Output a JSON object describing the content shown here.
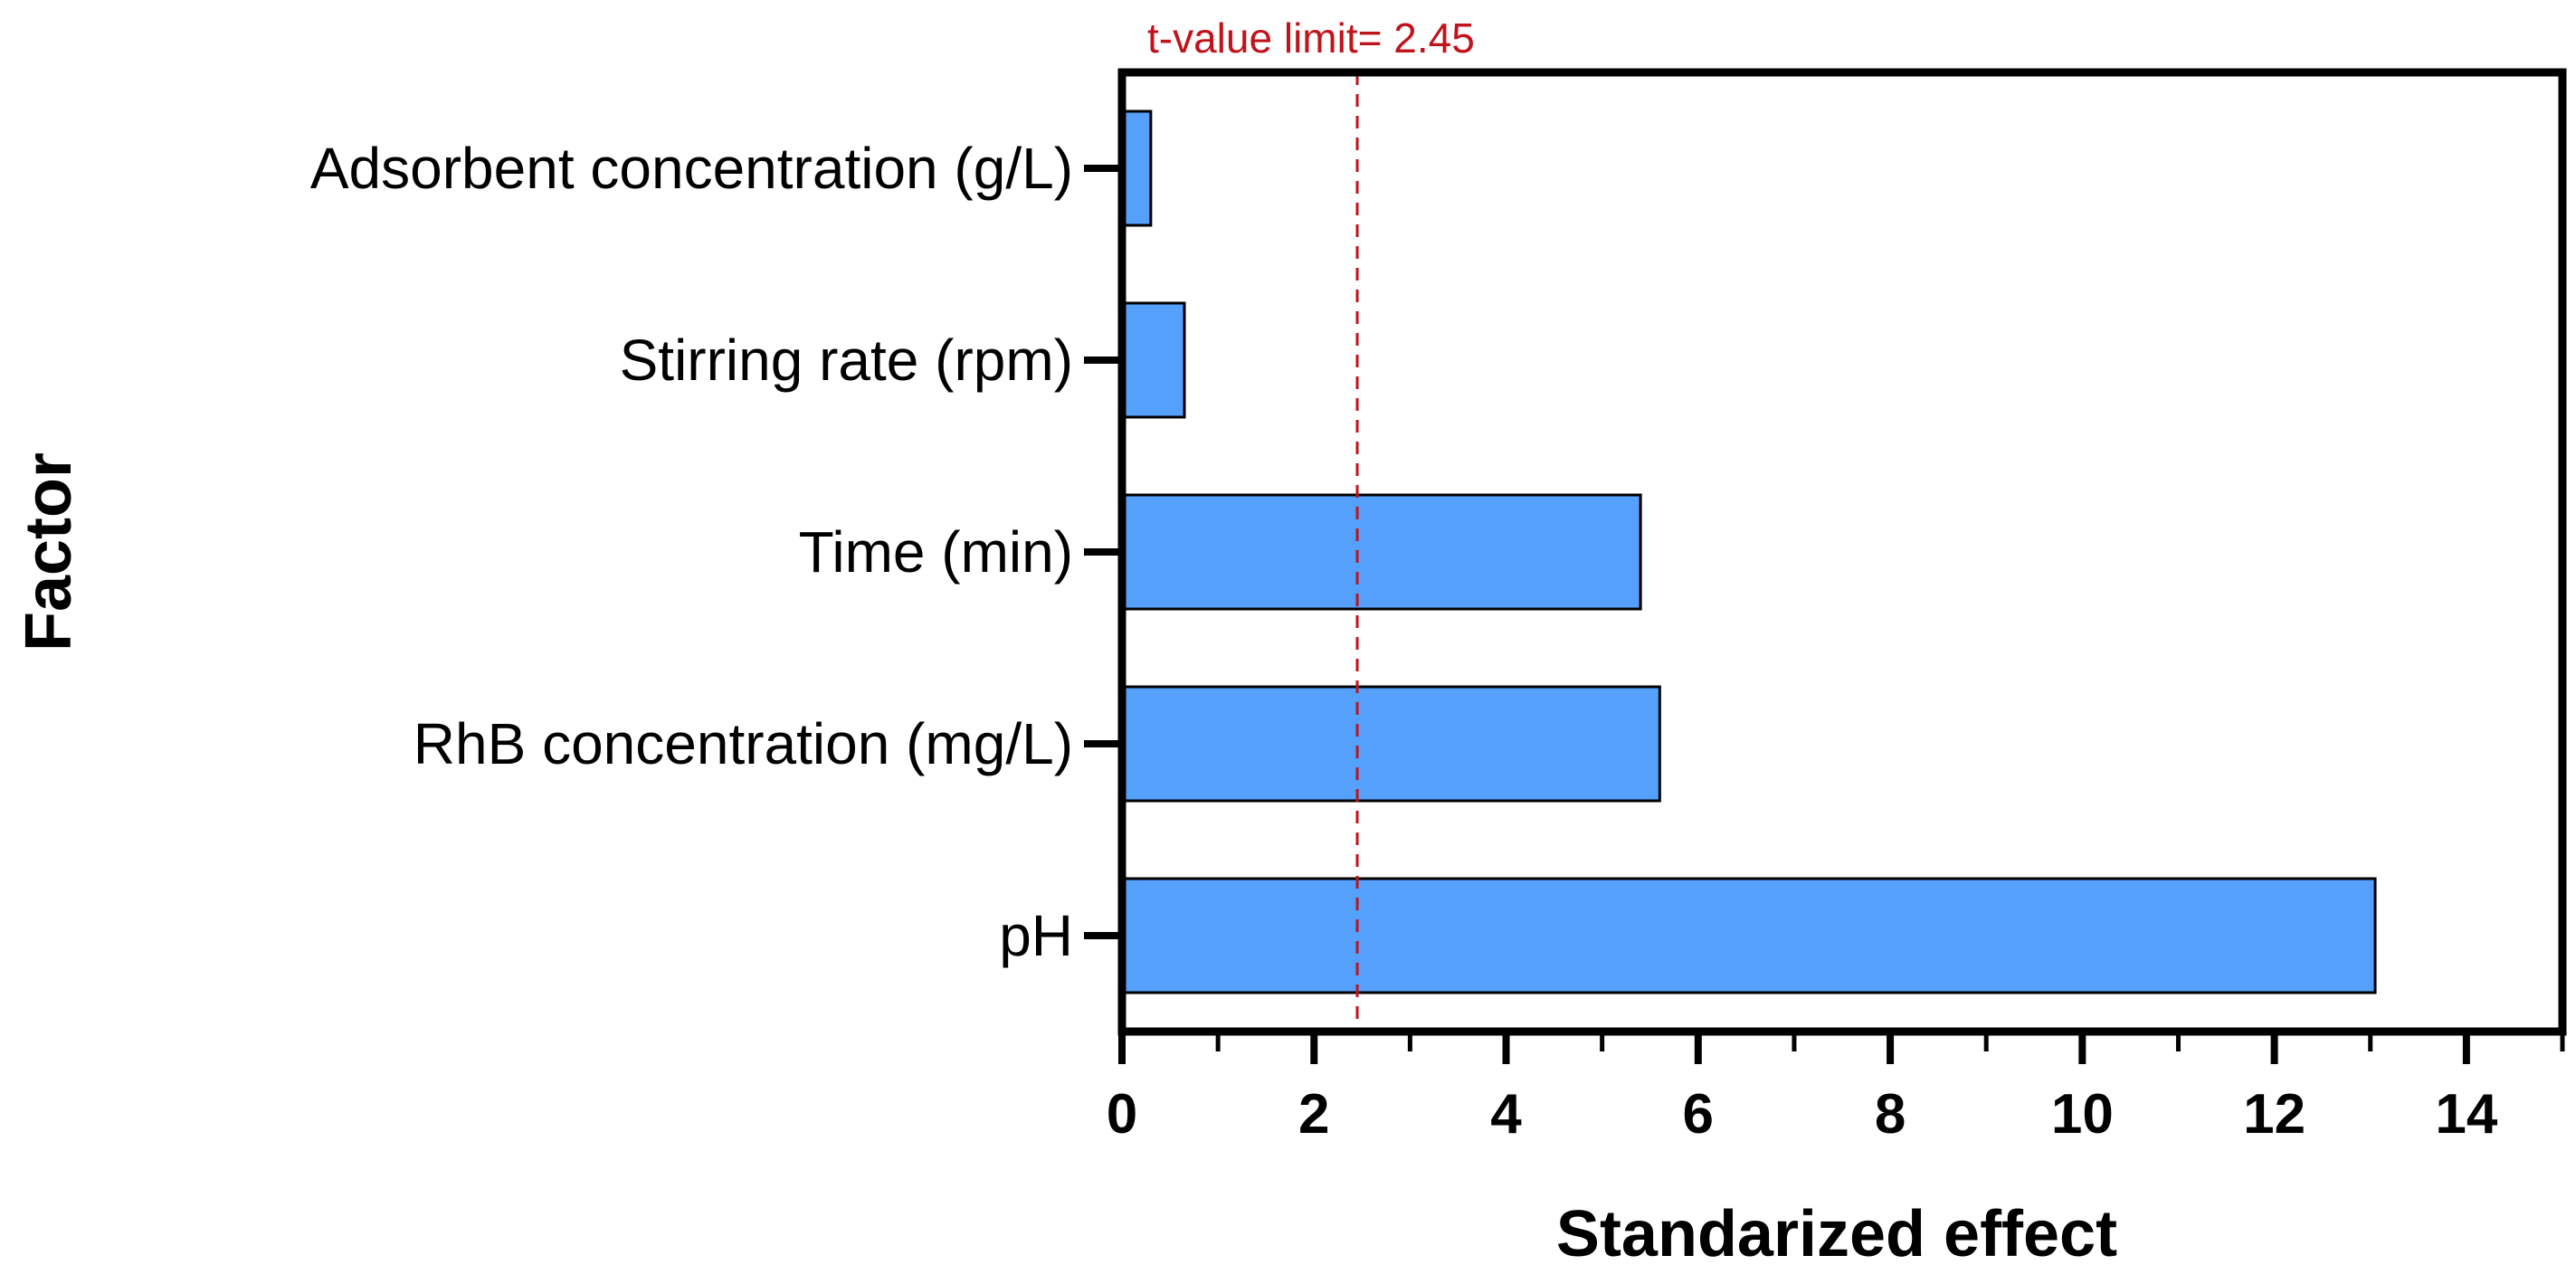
{
  "chart_data": {
    "type": "bar",
    "orientation": "horizontal",
    "categories": [
      "Adsorbent concentration (g/L)",
      "Stirring rate (rpm)",
      "Time (min)",
      "RhB concentration (mg/L)",
      "pH"
    ],
    "values": [
      0.3,
      0.65,
      5.4,
      5.6,
      13.05
    ],
    "xlabel": "Standarized effect",
    "ylabel": "Factor",
    "xlim": [
      0,
      15
    ],
    "xticks": [
      "0",
      "2",
      "4",
      "6",
      "8",
      "10",
      "12",
      "14"
    ],
    "grid": false,
    "threshold": {
      "value": 2.45,
      "label": "t-value limit= 2.45",
      "color": "#c0141c",
      "style": "dashed"
    },
    "colors": {
      "bar_fill": "#55a0fb",
      "bar_stroke": "#000000",
      "axis": "#000000"
    }
  }
}
